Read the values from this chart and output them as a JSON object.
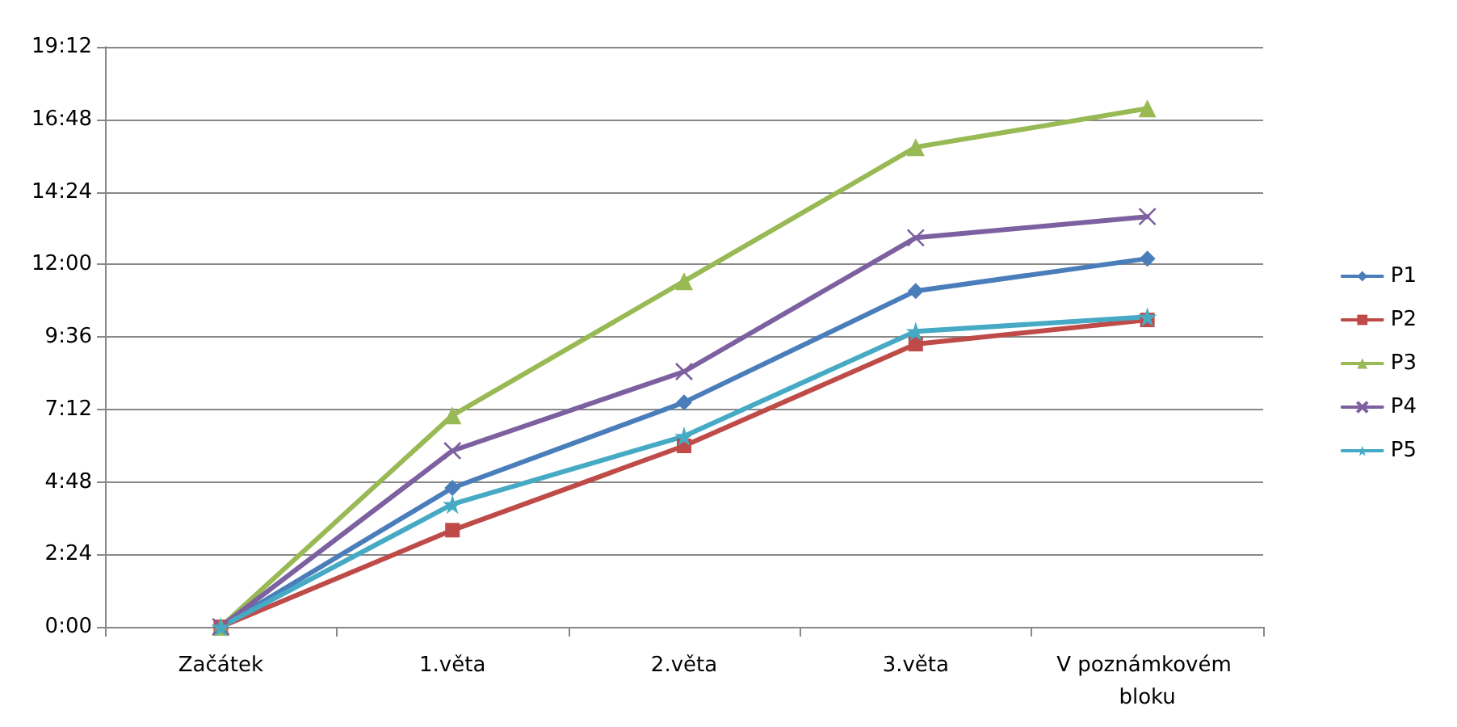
{
  "chart_data": {
    "type": "line",
    "categories": [
      "Začátek",
      "1.věta",
      "2.věta",
      "3.věta",
      "V poznámkovém bloku"
    ],
    "series": [
      {
        "name": "P1",
        "color": "#4a7ebb",
        "marker": "diamond",
        "values": [
          0,
          4.6,
          7.43,
          11.12,
          12.19
        ]
      },
      {
        "name": "P2",
        "color": "#be4b48",
        "marker": "square",
        "values": [
          0,
          3.2,
          5.99,
          9.36,
          10.16
        ]
      },
      {
        "name": "P3",
        "color": "#98b954",
        "marker": "triangle",
        "values": [
          0,
          7.0,
          11.44,
          15.88,
          17.16
        ]
      },
      {
        "name": "P4",
        "color": "#7d60a0",
        "marker": "cross",
        "values": [
          0,
          5.83,
          8.45,
          12.88,
          13.58
        ]
      },
      {
        "name": "P5",
        "color": "#46aac5",
        "marker": "star",
        "values": [
          0,
          4.06,
          6.31,
          9.78,
          10.26
        ]
      }
    ],
    "ylim": [
      0,
      19.2
    ],
    "yticks": [
      {
        "value": 0,
        "label": "0:00"
      },
      {
        "value": 2.4,
        "label": "2:24"
      },
      {
        "value": 4.8,
        "label": "4:48"
      },
      {
        "value": 7.2,
        "label": "7:12"
      },
      {
        "value": 9.6,
        "label": "9:36"
      },
      {
        "value": 12,
        "label": "12:00"
      },
      {
        "value": 14.4,
        "label": "14:24"
      },
      {
        "value": 16.8,
        "label": "16:48"
      },
      {
        "value": 19.2,
        "label": "19:12"
      }
    ],
    "grid": "y",
    "legend": "right",
    "line_style": "solid"
  }
}
